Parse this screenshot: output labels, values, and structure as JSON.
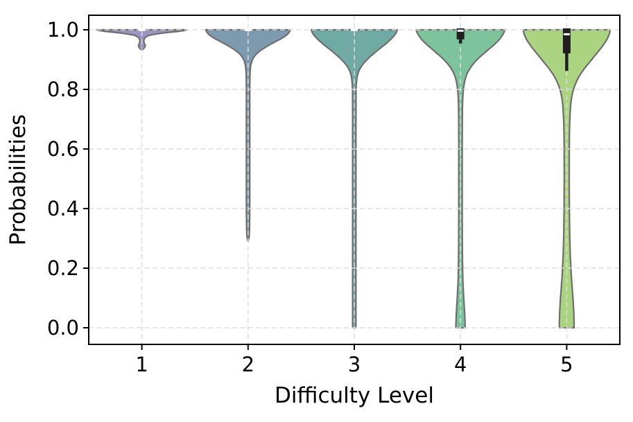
{
  "chart_data": {
    "type": "violin",
    "title": "",
    "xlabel": "Difficulty Level",
    "ylabel": "Probabilities",
    "x_ticks": [
      "1",
      "2",
      "3",
      "4",
      "5"
    ],
    "y_ticks": [
      "1.0",
      "0.8",
      "0.6",
      "0.4",
      "0.2",
      "0.0"
    ],
    "y_tick_values": [
      1.0,
      0.8,
      0.6,
      0.4,
      0.2,
      0.0
    ],
    "ylim": [
      -0.056,
      1.049
    ],
    "grid": {
      "show": true,
      "line_style": "dashed",
      "color": "#dcdcdc"
    },
    "legend": "none",
    "outline_color": "#6e6e6e",
    "box_color": "#1f1f1f",
    "median_color": "#ffffff",
    "violins": [
      {
        "category": "1",
        "color": "#9e94c4",
        "max": 1.0,
        "min": 0.93,
        "box": {
          "median": 1.0,
          "q1": 1.0,
          "q3": 1.0,
          "whisker_low": 1.0,
          "whisker_high": 1.0
        },
        "profile": [
          [
            1.0,
            65
          ],
          [
            0.998,
            62
          ],
          [
            0.996,
            57
          ],
          [
            0.994,
            50
          ],
          [
            0.992,
            42
          ],
          [
            0.99,
            34
          ],
          [
            0.988,
            27
          ],
          [
            0.986,
            21
          ],
          [
            0.984,
            16
          ],
          [
            0.982,
            12
          ],
          [
            0.98,
            9
          ],
          [
            0.977,
            6.5
          ],
          [
            0.974,
            4.8
          ],
          [
            0.97,
            3.6
          ],
          [
            0.965,
            3.0
          ],
          [
            0.96,
            2.9
          ],
          [
            0.955,
            3.4
          ],
          [
            0.95,
            4.6
          ],
          [
            0.945,
            4.9
          ],
          [
            0.94,
            3.6
          ],
          [
            0.935,
            1.8
          ],
          [
            0.932,
            0
          ]
        ]
      },
      {
        "category": "2",
        "color": "#7e9aaf",
        "max": 1.0,
        "min": 0.29,
        "box": {
          "median": 1.0,
          "q1": 1.0,
          "q3": 1.0,
          "whisker_low": 1.0,
          "whisker_high": 1.0
        },
        "profile": [
          [
            1.0,
            61
          ],
          [
            0.992,
            59.5
          ],
          [
            0.984,
            56.5
          ],
          [
            0.976,
            52
          ],
          [
            0.968,
            46
          ],
          [
            0.96,
            39.5
          ],
          [
            0.952,
            33
          ],
          [
            0.944,
            27
          ],
          [
            0.936,
            21.5
          ],
          [
            0.928,
            16.5
          ],
          [
            0.92,
            12.5
          ],
          [
            0.912,
            9.5
          ],
          [
            0.904,
            7.3
          ],
          [
            0.896,
            5.7
          ],
          [
            0.888,
            4.6
          ],
          [
            0.88,
            3.8
          ],
          [
            0.865,
            3.1
          ],
          [
            0.85,
            2.7
          ],
          [
            0.82,
            2.5
          ],
          [
            0.78,
            2.4
          ],
          [
            0.7,
            2.4
          ],
          [
            0.6,
            2.4
          ],
          [
            0.5,
            2.4
          ],
          [
            0.42,
            2.4
          ],
          [
            0.37,
            2.3
          ],
          [
            0.33,
            2.1
          ],
          [
            0.305,
            1.6
          ],
          [
            0.29,
            0
          ]
        ]
      },
      {
        "category": "3",
        "color": "#6faaa3",
        "max": 1.0,
        "min": 0.0,
        "box": {
          "median": 1.0,
          "q1": 1.0,
          "q3": 1.0,
          "whisker_low": 1.0,
          "whisker_high": 1.0
        },
        "profile": [
          [
            1.0,
            62
          ],
          [
            0.99,
            60.5
          ],
          [
            0.98,
            57.5
          ],
          [
            0.97,
            53.5
          ],
          [
            0.96,
            49
          ],
          [
            0.95,
            44
          ],
          [
            0.94,
            38.5
          ],
          [
            0.93,
            33
          ],
          [
            0.92,
            28
          ],
          [
            0.91,
            23
          ],
          [
            0.9,
            18.5
          ],
          [
            0.89,
            14.5
          ],
          [
            0.88,
            11
          ],
          [
            0.87,
            8.3
          ],
          [
            0.86,
            6.3
          ],
          [
            0.85,
            4.9
          ],
          [
            0.84,
            4.0
          ],
          [
            0.825,
            3.2
          ],
          [
            0.81,
            2.7
          ],
          [
            0.79,
            2.5
          ],
          [
            0.7,
            2.4
          ],
          [
            0.55,
            2.4
          ],
          [
            0.4,
            2.4
          ],
          [
            0.25,
            2.4
          ],
          [
            0.1,
            2.4
          ],
          [
            0.0,
            2.4
          ]
        ]
      },
      {
        "category": "4",
        "color": "#7dc49c",
        "max": 1.0,
        "min": 0.0,
        "box": {
          "median": 0.997,
          "q1": 0.968,
          "q3": 1.005,
          "whisker_low": 0.954,
          "whisker_high": 1.005
        },
        "profile": [
          [
            1.0,
            64
          ],
          [
            0.99,
            62.5
          ],
          [
            0.98,
            60
          ],
          [
            0.97,
            57
          ],
          [
            0.96,
            53
          ],
          [
            0.95,
            48.5
          ],
          [
            0.94,
            43.5
          ],
          [
            0.93,
            38.5
          ],
          [
            0.92,
            33.5
          ],
          [
            0.91,
            28.5
          ],
          [
            0.9,
            24
          ],
          [
            0.89,
            20
          ],
          [
            0.88,
            16.5
          ],
          [
            0.87,
            13.5
          ],
          [
            0.86,
            11
          ],
          [
            0.85,
            9
          ],
          [
            0.84,
            7.4
          ],
          [
            0.825,
            5.8
          ],
          [
            0.81,
            4.7
          ],
          [
            0.79,
            3.8
          ],
          [
            0.77,
            3.2
          ],
          [
            0.74,
            2.8
          ],
          [
            0.7,
            2.6
          ],
          [
            0.6,
            2.5
          ],
          [
            0.5,
            2.5
          ],
          [
            0.4,
            2.5
          ],
          [
            0.3,
            2.6
          ],
          [
            0.22,
            2.9
          ],
          [
            0.16,
            3.4
          ],
          [
            0.12,
            4.2
          ],
          [
            0.08,
            5.2
          ],
          [
            0.04,
            6.2
          ],
          [
            0.0,
            6.8
          ]
        ]
      },
      {
        "category": "5",
        "color": "#aad480",
        "max": 1.0,
        "min": 0.0,
        "box": {
          "median": 0.985,
          "q1": 0.921,
          "q3": 1.005,
          "whisker_low": 0.862,
          "whisker_high": 1.005
        },
        "profile": [
          [
            1.0,
            62.5
          ],
          [
            0.99,
            62
          ],
          [
            0.98,
            60.5
          ],
          [
            0.97,
            58.5
          ],
          [
            0.96,
            56
          ],
          [
            0.95,
            53
          ],
          [
            0.94,
            50
          ],
          [
            0.93,
            46.5
          ],
          [
            0.92,
            43
          ],
          [
            0.91,
            39.5
          ],
          [
            0.9,
            36
          ],
          [
            0.89,
            32.5
          ],
          [
            0.88,
            29
          ],
          [
            0.87,
            25.5
          ],
          [
            0.86,
            22.5
          ],
          [
            0.85,
            19.5
          ],
          [
            0.84,
            17
          ],
          [
            0.825,
            13.8
          ],
          [
            0.81,
            11.2
          ],
          [
            0.79,
            8.6
          ],
          [
            0.77,
            6.9
          ],
          [
            0.75,
            5.8
          ],
          [
            0.72,
            4.9
          ],
          [
            0.69,
            4.3
          ],
          [
            0.65,
            3.9
          ],
          [
            0.6,
            3.7
          ],
          [
            0.5,
            3.6
          ],
          [
            0.4,
            3.8
          ],
          [
            0.3,
            4.4
          ],
          [
            0.24,
            5.2
          ],
          [
            0.18,
            6.5
          ],
          [
            0.13,
            8.0
          ],
          [
            0.09,
            9.3
          ],
          [
            0.05,
            10.2
          ],
          [
            0.02,
            10.6
          ],
          [
            0.0,
            10.6
          ]
        ]
      }
    ]
  }
}
